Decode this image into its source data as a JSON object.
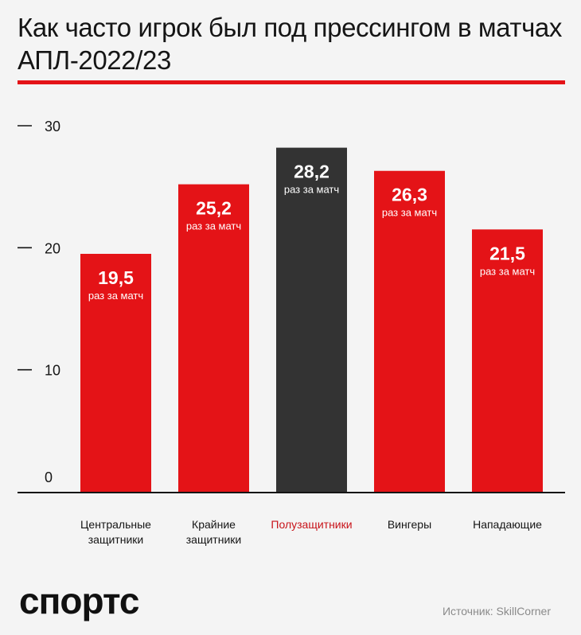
{
  "title": "Как часто игрок был под прессингом в матчах АПЛ-2022/23",
  "bar_sublabel": "раз за матч",
  "source": "Источник: SkillCorner",
  "logo_text": "спортс",
  "colors": {
    "accent": "#e41317",
    "highlight": "#333333",
    "highlight_text": "#c8131a",
    "axis": "#151515",
    "background": "#f4f4f4"
  },
  "chart_data": {
    "type": "bar",
    "title": "Как часто игрок был под прессингом в матчах АПЛ-2022/23",
    "categories": [
      "Центральные защитники",
      "Крайние защитники",
      "Полузащитники",
      "Вингеры",
      "Нападающие"
    ],
    "category_lines": [
      [
        "Центральные",
        "защитники"
      ],
      [
        "Крайние",
        "защитники"
      ],
      [
        "Полузащитники"
      ],
      [
        "Вингеры"
      ],
      [
        "Нападающие"
      ]
    ],
    "values": [
      19.5,
      25.2,
      28.2,
      26.3,
      21.5
    ],
    "value_labels": [
      "19,5",
      "25,2",
      "28,2",
      "26,3",
      "21,5"
    ],
    "highlight_index": 2,
    "yticks": [
      0,
      10,
      20,
      30
    ],
    "ylim": [
      0,
      30
    ],
    "xlabel": "",
    "ylabel": "",
    "grid": false,
    "legend": "none"
  }
}
